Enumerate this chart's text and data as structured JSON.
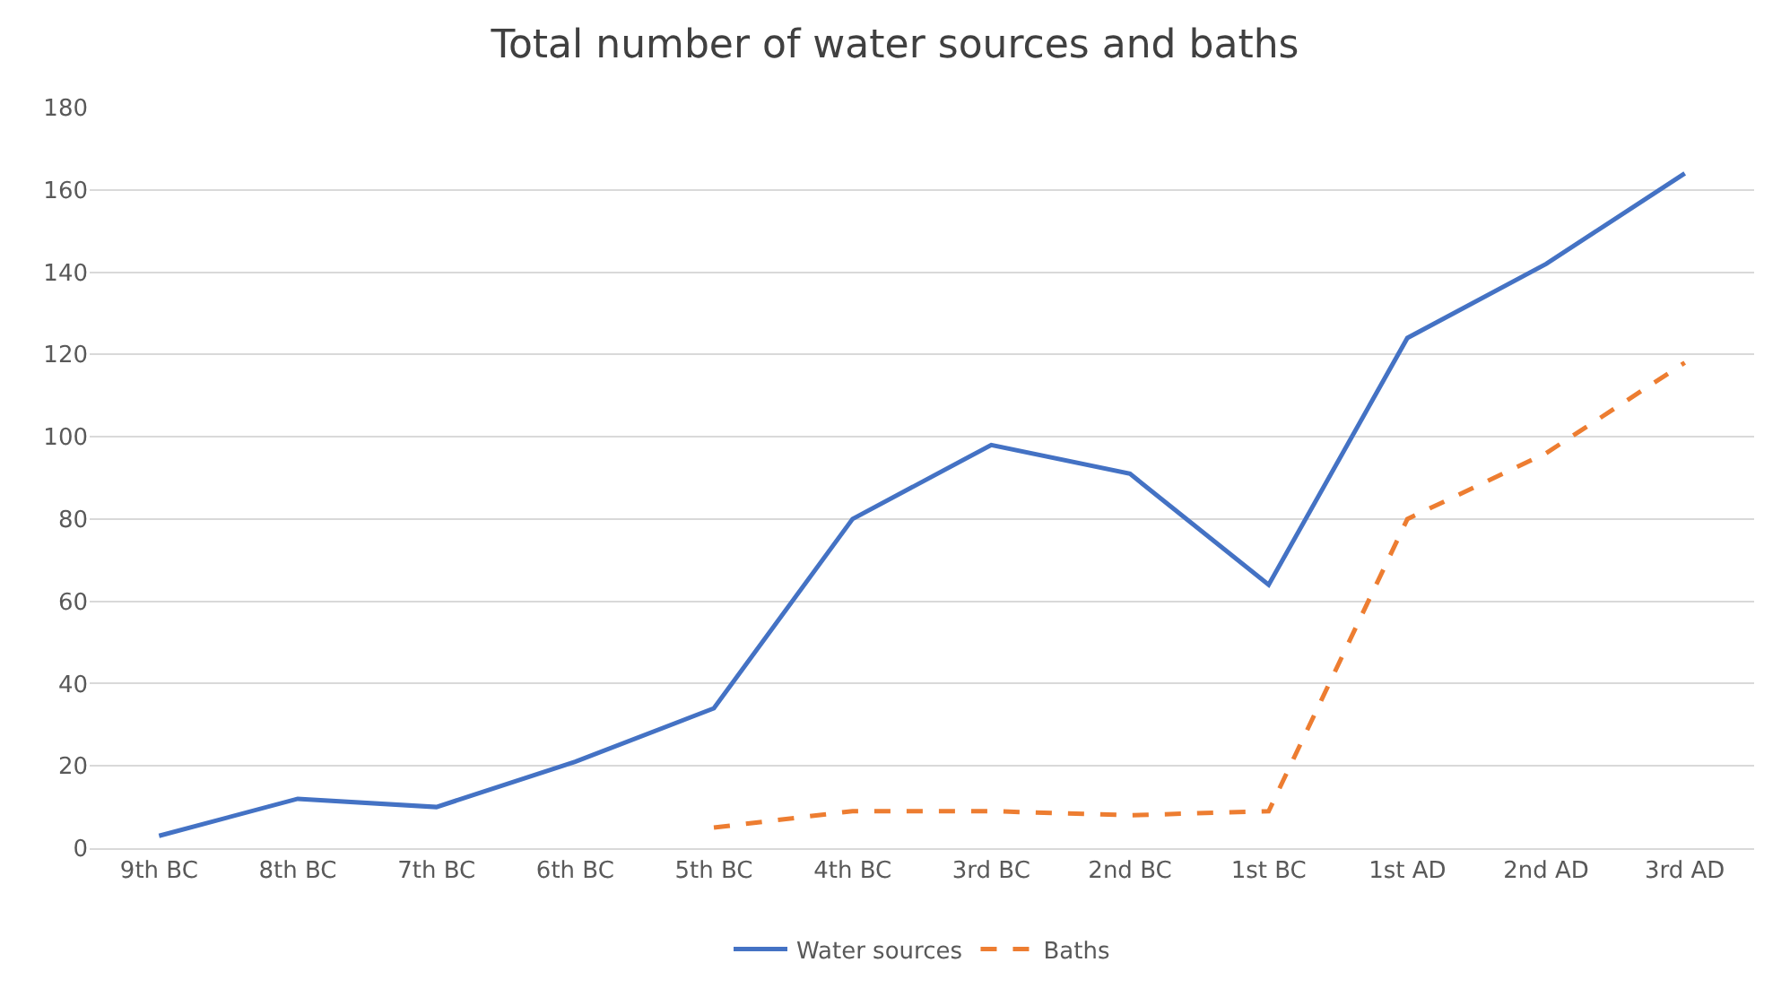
{
  "chart_data": {
    "type": "line",
    "title": "Total number of water sources and baths",
    "categories": [
      "9th BC",
      "8th BC",
      "7th BC",
      "6th BC",
      "5th BC",
      "4th BC",
      "3rd BC",
      "2nd BC",
      "1st BC",
      "1st AD",
      "2nd AD",
      "3rd AD"
    ],
    "series": [
      {
        "name": "Water sources",
        "color": "#4472c4",
        "line_style": "solid",
        "values": [
          3,
          12,
          10,
          21,
          34,
          80,
          98,
          91,
          64,
          124,
          142,
          164
        ]
      },
      {
        "name": "Baths",
        "color": "#ed7d31",
        "line_style": "dashed",
        "values": [
          null,
          null,
          null,
          null,
          5,
          9,
          9,
          8,
          9,
          80,
          96,
          118
        ]
      }
    ],
    "ylim": [
      0,
      180
    ],
    "yticks": [
      0,
      20,
      40,
      60,
      80,
      100,
      120,
      140,
      160,
      180
    ],
    "grid": "y",
    "legend": "bottom",
    "marker": "none"
  }
}
